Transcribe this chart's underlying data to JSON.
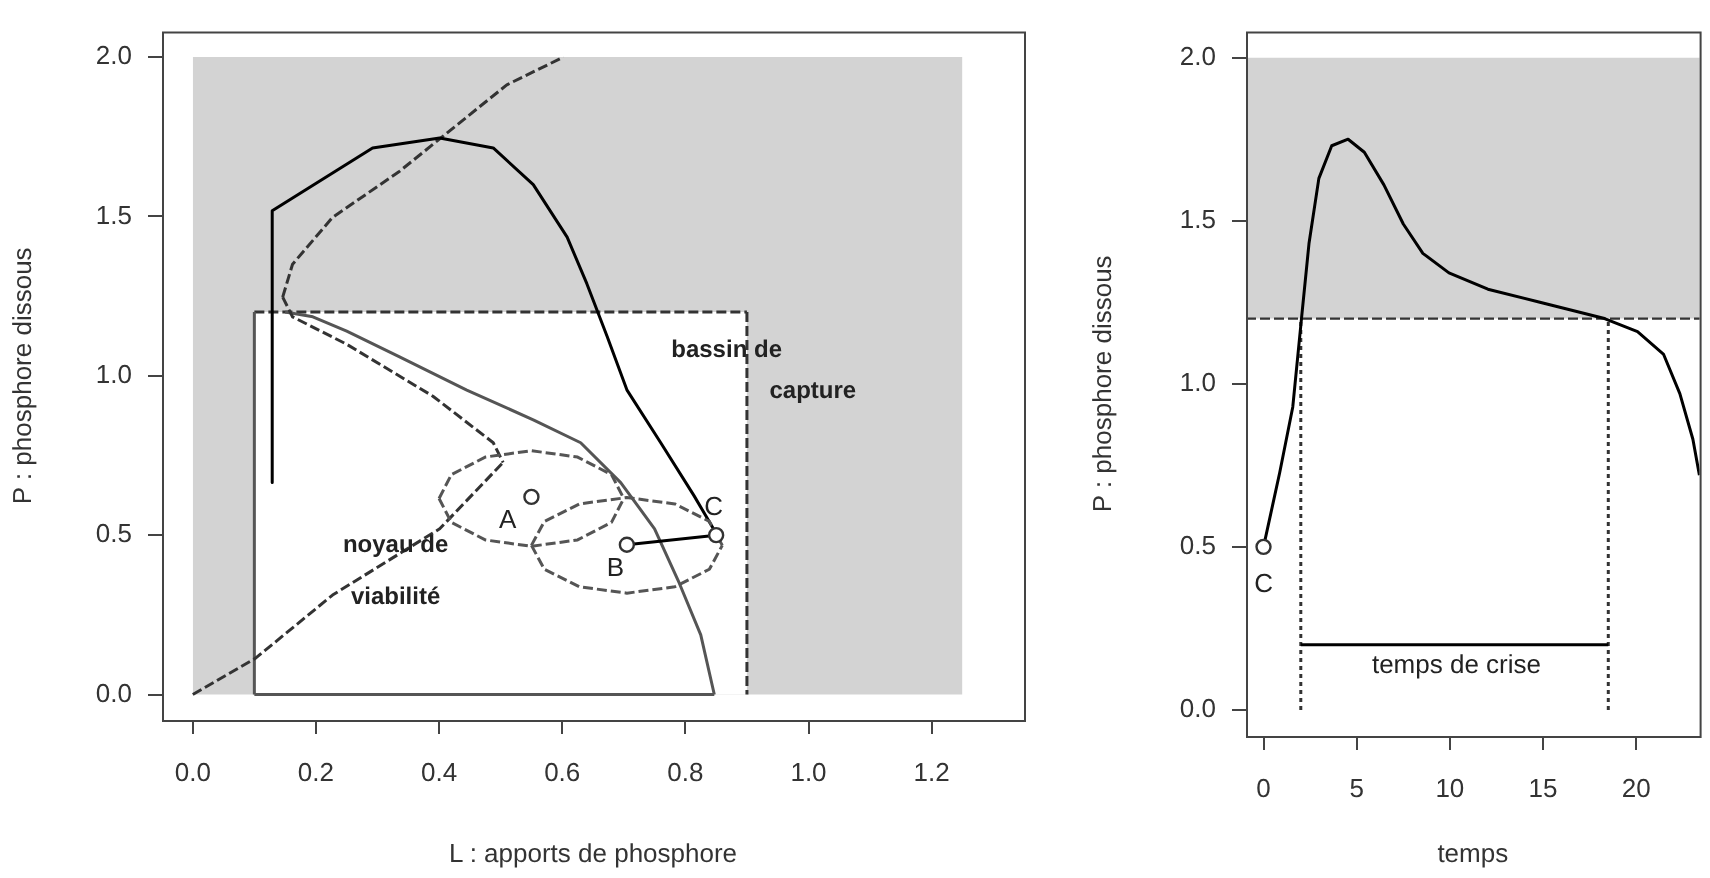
{
  "chart_data": [
    {
      "type": "line",
      "xlabel": "L : apports de phosphore",
      "ylabel": "P : phosphore dissous",
      "xlim": [
        -0.05,
        1.35
      ],
      "ylim": [
        -0.08,
        2.08
      ],
      "xticks": [
        {
          "value": 0,
          "label": "0.0"
        },
        {
          "value": 0.2,
          "label": "0.2"
        },
        {
          "value": 0.4,
          "label": "0.4"
        },
        {
          "value": 0.6,
          "label": "0.6"
        },
        {
          "value": 0.8,
          "label": "0.8"
        },
        {
          "value": 1,
          "label": "1.0"
        },
        {
          "value": 1.2,
          "label": "1.2"
        }
      ],
      "yticks": [
        {
          "value": 0,
          "label": "0.0"
        },
        {
          "value": 0.5,
          "label": "0.5"
        },
        {
          "value": 1,
          "label": "1.0"
        },
        {
          "value": 1.5,
          "label": "1.5"
        },
        {
          "value": 2,
          "label": "2.0"
        }
      ],
      "series": [
        {
          "type": "area",
          "color": "#d3d3d3",
          "x": [
            0,
            1.25
          ],
          "values": [
            2,
            2
          ]
        },
        {
          "type": "area",
          "color": "#ffffff",
          "line_style": "dashed",
          "x": [
            0.1,
            0.9
          ],
          "values": [
            1.2,
            1.2
          ]
        },
        {
          "type": "line",
          "color": "#333333",
          "line_style": "dashed",
          "x": [
            0.9,
            0.9
          ],
          "values": [
            1.2,
            0
          ]
        },
        {
          "type": "line",
          "color": "#555555",
          "x": [
            0.1,
            0.1
          ],
          "values": [
            0,
            1.2
          ]
        },
        {
          "type": "line",
          "color": "#555555",
          "x": [
            0.15,
            0.195,
            0.25,
            0.335,
            0.445,
            0.553,
            0.63,
            0.695,
            0.75,
            0.79,
            0.825,
            0.847
          ],
          "values": [
            1.2,
            1.185,
            1.14,
            1.06,
            0.955,
            0.862,
            0.79,
            0.665,
            0.52,
            0.35,
            0.187,
            0
          ]
        },
        {
          "type": "line",
          "color": "#555555",
          "x": [
            0.1,
            0.847
          ],
          "values": [
            0,
            0
          ]
        },
        {
          "type": "line",
          "color": "#333333",
          "line_style": "dashed",
          "x": [
            0,
            0.102,
            0.227,
            0.401,
            0.504
          ],
          "values": [
            0,
            0.114,
            0.312,
            0.52,
            0.728
          ]
        },
        {
          "type": "line",
          "color": "#333333",
          "line_style": "dashed",
          "x": [
            0.146,
            0.162,
            0.249,
            0.39,
            0.488,
            0.504
          ],
          "values": [
            1.247,
            1.185,
            1.1,
            0.936,
            0.79,
            0.728
          ]
        },
        {
          "type": "line",
          "color": "#333333",
          "line_style": "dashed",
          "x": [
            0.146,
            0.162,
            0.227,
            0.336,
            0.51,
            0.602
          ],
          "values": [
            1.247,
            1.35,
            1.497,
            1.642,
            1.913,
            2
          ]
        },
        {
          "type": "line",
          "color": "#000000",
          "x": [
            0.852,
            0.814,
            0.76,
            0.705,
            0.673,
            0.64,
            0.608,
            0.553,
            0.488,
            0.401,
            0.292,
            0.129,
            0.129
          ],
          "values": [
            0.499,
            0.624,
            0.79,
            0.956,
            1.123,
            1.289,
            1.435,
            1.6,
            1.715,
            1.746,
            1.715,
            1.518,
            0.665
          ]
        },
        {
          "type": "line",
          "color": "#555555",
          "line_style": "dashed",
          "x": [
            0.4,
            0.42,
            0.475,
            0.55,
            0.625,
            0.68,
            0.7
          ],
          "values": [
            0.615,
            0.69,
            0.745,
            0.765,
            0.745,
            0.69,
            0.615
          ]
        },
        {
          "type": "line",
          "color": "#555555",
          "line_style": "dashed",
          "x": [
            0.4,
            0.42,
            0.475,
            0.55,
            0.625,
            0.68,
            0.7
          ],
          "values": [
            0.615,
            0.54,
            0.485,
            0.465,
            0.485,
            0.54,
            0.615
          ]
        },
        {
          "type": "line",
          "color": "#555555",
          "line_style": "dashed",
          "x": [
            0.55,
            0.571,
            0.628,
            0.705,
            0.783,
            0.839,
            0.86
          ],
          "values": [
            0.468,
            0.543,
            0.598,
            0.618,
            0.598,
            0.543,
            0.468
          ]
        },
        {
          "type": "line",
          "color": "#555555",
          "line_style": "dashed",
          "x": [
            0.55,
            0.571,
            0.628,
            0.705,
            0.783,
            0.839,
            0.86
          ],
          "values": [
            0.468,
            0.393,
            0.338,
            0.318,
            0.338,
            0.393,
            0.468
          ]
        },
        {
          "type": "line",
          "color": "#000000",
          "x": [
            0.705,
            0.85
          ],
          "values": [
            0.47,
            0.5
          ]
        },
        {
          "type": "scatter",
          "color": "#333333",
          "marker": "circle",
          "x": [
            0.55,
            0.705,
            0.85
          ],
          "values": [
            0.62,
            0.47,
            0.5
          ]
        }
      ],
      "annotations": [
        "A",
        "B",
        "C",
        "noyau de",
        "viabilité",
        "bassin de",
        "capture"
      ]
    },
    {
      "type": "line",
      "xlabel": "temps",
      "ylabel": "P : phosphore dissous",
      "xlim": [
        -0.94,
        23.4
      ],
      "ylim": [
        -0.08,
        2.08
      ],
      "xticks": [
        0,
        5,
        10,
        15,
        20
      ],
      "yticks": [
        {
          "value": 0,
          "label": "0.0"
        },
        {
          "value": 0.5,
          "label": "0.5"
        },
        {
          "value": 1,
          "label": "1.0"
        },
        {
          "value": 1.5,
          "label": "1.5"
        },
        {
          "value": 2,
          "label": "2.0"
        }
      ],
      "bands": [
        {
          "axis": "y",
          "from": 1.2,
          "to": 2,
          "color": "#d3d3d3"
        }
      ],
      "ref_lines": [
        {
          "axis": "y",
          "value": 1.2,
          "color": "#333333",
          "line_style": "dashed"
        }
      ],
      "series": [
        {
          "type": "line",
          "color": "#333333",
          "line_style": "dotted",
          "x": [
            2,
            2
          ],
          "values": [
            0,
            1.2
          ]
        },
        {
          "type": "line",
          "color": "#333333",
          "line_style": "dotted",
          "x": [
            18.5,
            18.5
          ],
          "values": [
            0,
            1.2
          ]
        },
        {
          "type": "line",
          "color": "#000000",
          "x": [
            2,
            18.5
          ],
          "values": [
            0.2,
            0.2
          ]
        },
        {
          "type": "line",
          "color": "#000000",
          "x": [
            0,
            0.87,
            1.57,
            2.02,
            2.44,
            2.97,
            3.66,
            4.54,
            5.41,
            6.46,
            7.5,
            8.55,
            9.95,
            12.04,
            14.83,
            18.3,
            20.07,
            21.47,
            22.34,
            23.04,
            23.39
          ],
          "values": [
            0.5,
            0.728,
            0.929,
            1.19,
            1.43,
            1.63,
            1.73,
            1.75,
            1.71,
            1.61,
            1.49,
            1.4,
            1.34,
            1.29,
            1.25,
            1.2,
            1.16,
            1.09,
            0.97,
            0.83,
            0.72
          ]
        },
        {
          "type": "scatter",
          "color": "#333333",
          "marker": "circle",
          "x": [
            0
          ],
          "values": [
            0.5
          ]
        }
      ],
      "annotations": [
        "C",
        "temps de crise"
      ]
    }
  ]
}
